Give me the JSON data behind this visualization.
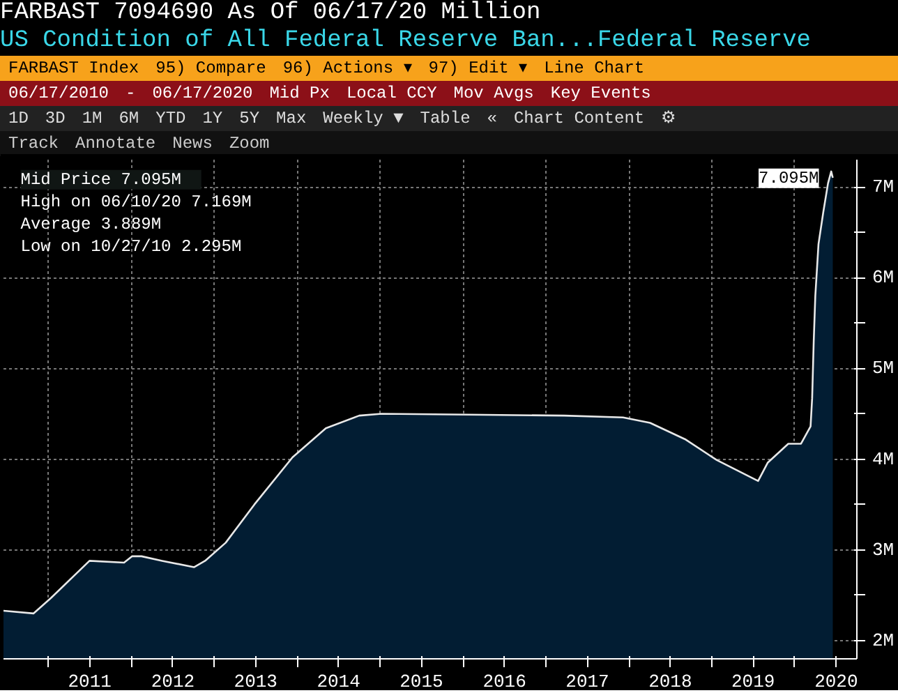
{
  "chart_data": {
    "type": "area",
    "title": "US Condition of All Federal Reserve Ban...Federal Reserve",
    "subtitle": "FARBAST    7094690      As Of 06/17/20 Million",
    "x": [
      "2010-06-17",
      "2010-10-27",
      "2011-01-12",
      "2011-07-01",
      "2011-11-30",
      "2012-01-04",
      "2012-02-15",
      "2012-05-16",
      "2012-10-03",
      "2012-11-21",
      "2013-02-20",
      "2013-06-26",
      "2013-12-11",
      "2014-05-07",
      "2014-10-01",
      "2015-01-07",
      "2016-01-27",
      "2017-03-22",
      "2017-12-06",
      "2018-04-04",
      "2018-09-05",
      "2019-01-23",
      "2019-07-24",
      "2019-09-04",
      "2019-12-04",
      "2020-01-29",
      "2020-03-11",
      "2020-03-18",
      "2020-03-25",
      "2020-04-01",
      "2020-04-15",
      "2020-05-06",
      "2020-05-27",
      "2020-06-10",
      "2020-06-17"
    ],
    "series": [
      {
        "color": "#021d33",
        "values": [
          2.33,
          2.3,
          2.47,
          2.88,
          2.86,
          2.93,
          2.93,
          2.88,
          2.81,
          2.88,
          3.08,
          3.5,
          4.02,
          4.34,
          4.48,
          4.5,
          4.49,
          4.48,
          4.46,
          4.4,
          4.22,
          3.99,
          3.76,
          3.96,
          4.17,
          4.17,
          4.36,
          4.67,
          5.3,
          5.8,
          6.37,
          6.72,
          7.04,
          7.17,
          7.1
        ]
      }
    ],
    "xlim": [
      "2010-06-17",
      "2020-10-01"
    ],
    "xticks": [
      {
        "value": "2011-01-01",
        "label": null
      },
      {
        "value": "2011-07-02",
        "label": "2011"
      },
      {
        "value": "2012-01-01",
        "label": null
      },
      {
        "value": "2012-07-02",
        "label": "2012"
      },
      {
        "value": "2013-01-01",
        "label": null
      },
      {
        "value": "2013-07-02",
        "label": "2013"
      },
      {
        "value": "2014-01-01",
        "label": null
      },
      {
        "value": "2014-07-02",
        "label": "2014"
      },
      {
        "value": "2015-01-01",
        "label": null
      },
      {
        "value": "2015-07-02",
        "label": "2015"
      },
      {
        "value": "2016-01-01",
        "label": null
      },
      {
        "value": "2016-07-02",
        "label": "2016"
      },
      {
        "value": "2017-01-01",
        "label": null
      },
      {
        "value": "2017-07-02",
        "label": "2017"
      },
      {
        "value": "2018-01-01",
        "label": null
      },
      {
        "value": "2018-07-02",
        "label": "2018"
      },
      {
        "value": "2019-01-01",
        "label": null
      },
      {
        "value": "2019-07-02",
        "label": "2019"
      },
      {
        "value": "2020-01-01",
        "label": null
      },
      {
        "value": "2020-07-02",
        "label": "2020"
      }
    ],
    "ylim": [
      1.8,
      7.3
    ],
    "yticks": [
      {
        "value": 2,
        "label": "2M"
      },
      {
        "value": 2.5,
        "label": null
      },
      {
        "value": 3,
        "label": "3M"
      },
      {
        "value": 3.5,
        "label": null
      },
      {
        "value": 4,
        "label": "4M"
      },
      {
        "value": 4.5,
        "label": null
      },
      {
        "value": 5,
        "label": "5M"
      },
      {
        "value": 5.5,
        "label": null
      },
      {
        "value": 6,
        "label": "6M"
      },
      {
        "value": 6.5,
        "label": null
      },
      {
        "value": 7,
        "label": "7M"
      }
    ],
    "grid": true,
    "annotations": [
      "Mid Price   7.095M",
      "High on 06/10/20 7.169M",
      "Average   3.889M",
      "Low on 10/27/10 2.295M",
      {
        "text": "7.095M",
        "x": "2020-06-17",
        "y": 7.095
      },
      "FARBAST Index",
      "95) Compare",
      "96) Actions ▾",
      "97) Edit ▾",
      "Line Chart",
      "06/17/2010",
      "-",
      "06/17/2020",
      "Mid Px",
      "Local CCY",
      "Mov Avgs",
      "Key Events",
      "1D",
      "3D",
      "1M",
      "6M",
      "YTD",
      "1Y",
      "5Y",
      "Max",
      "Weekly ▼",
      "Table",
      "«",
      "Chart Content",
      "⚙",
      "Track",
      "Annotate",
      "News",
      "Zoom"
    ]
  }
}
